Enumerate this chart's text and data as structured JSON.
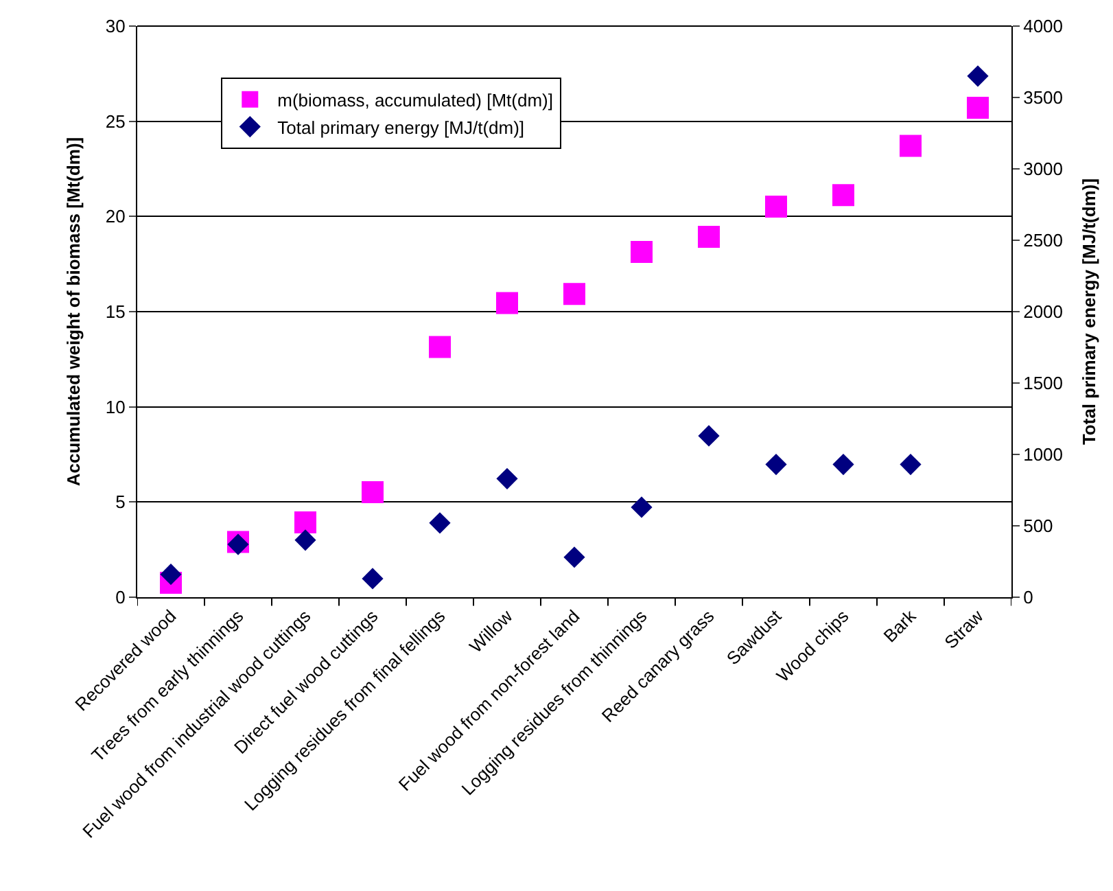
{
  "chart_data": {
    "type": "scatter",
    "ylabel": "Accumulated weight of biomass [Mt(dm)]",
    "y2label": "Total primary energy [MJ/t(dm)]",
    "categories": [
      "Recovered wood",
      "Trees from early thinnings",
      "Fuel wood from industrial wood cuttings",
      "Direct fuel wood cuttings",
      "Logging residues from final fellings",
      "Willow",
      "Fuel wood from non-forest land",
      "Logging residues from thinnings",
      "Reed canary grass",
      "Sawdust",
      "Wood chips",
      "Bark",
      "Straw"
    ],
    "series": [
      {
        "name": "m(biomass, accumulated) [Mt(dm)]",
        "color": "#ff00ff",
        "marker": "square",
        "values": [
          0.76,
          2.9,
          3.93,
          5.52,
          13.14,
          15.45,
          15.93,
          18.14,
          18.93,
          20.52,
          21.12,
          23.71,
          25.71
        ]
      },
      {
        "name": "Total primary energy [MJ/t(dm)]",
        "color": "#000080",
        "marker": "diamond",
        "axis": "y2",
        "values": [
          160,
          370,
          400,
          130,
          520,
          830,
          280,
          630,
          1130,
          930,
          930,
          930,
          3650
        ]
      }
    ],
    "ylim": [
      0,
      30
    ],
    "yticks": [
      0,
      5,
      10,
      15,
      20,
      25,
      30
    ],
    "y2lim": [
      0,
      4000
    ],
    "y2ticks": [
      0,
      500,
      1000,
      1500,
      2000,
      2500,
      3000,
      3500,
      4000
    ],
    "grid": "y",
    "legend": "top left"
  }
}
